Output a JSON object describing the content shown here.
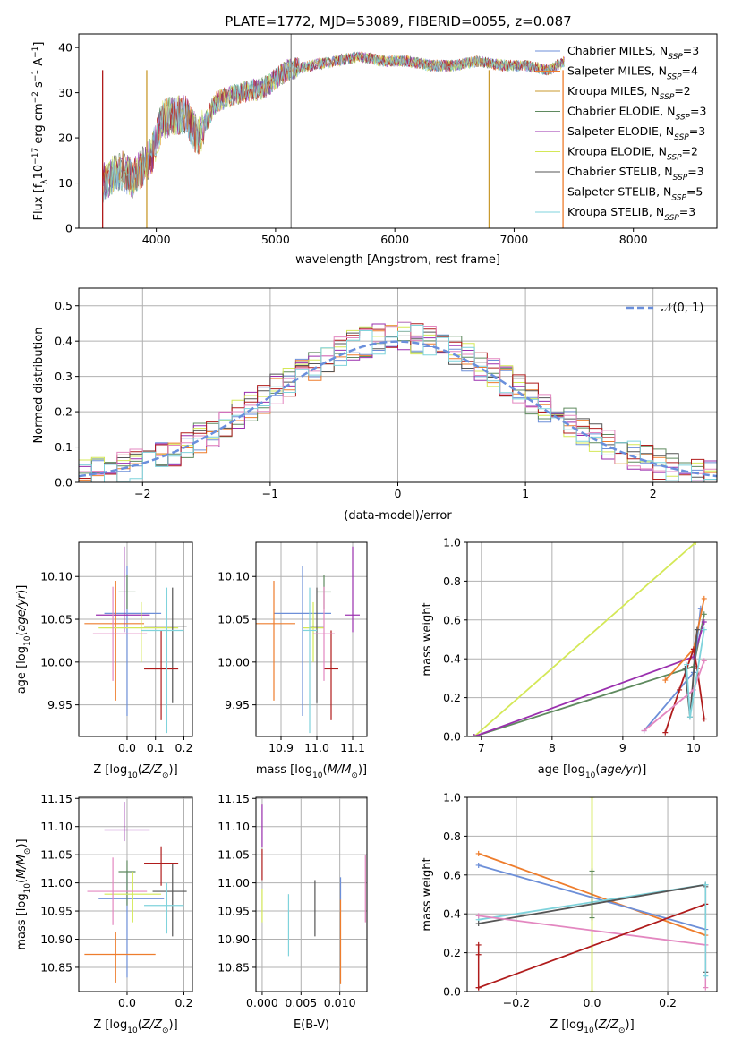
{
  "figure": {
    "title": "PLATE=1772, MJD=53089, FIBERID=0055, z=0.087",
    "legend1": [
      {
        "prefix": "Chabrier MILES, N",
        "sub": "SSP",
        "suffix": "=3",
        "color": "#6d8fd8"
      },
      {
        "prefix": "Salpeter MILES, N",
        "sub": "SSP",
        "suffix": "=4",
        "color": "#ee7d2d"
      },
      {
        "prefix": "Kroupa MILES, N",
        "sub": "SSP",
        "suffix": "=2",
        "color": "#c99a2e"
      },
      {
        "prefix": "Chabrier ELODIE, N",
        "sub": "SSP",
        "suffix": "=3",
        "color": "#5f8a5f"
      },
      {
        "prefix": "Salpeter ELODIE, N",
        "sub": "SSP",
        "suffix": "=3",
        "color": "#9a2fae"
      },
      {
        "prefix": "Kroupa ELODIE, N",
        "sub": "SSP",
        "suffix": "=2",
        "color": "#d4e857"
      },
      {
        "prefix": "Chabrier STELIB, N",
        "sub": "SSP",
        "suffix": "=3",
        "color": "#555555"
      },
      {
        "prefix": "Salpeter STELIB, N",
        "sub": "SSP",
        "suffix": "=5",
        "color": "#b01c1c"
      },
      {
        "prefix": "Kroupa STELIB, N",
        "sub": "SSP",
        "suffix": "=3",
        "color": "#7fd3dc"
      }
    ],
    "legend2": {
      "label": "𝒩(0, 1)",
      "color": "#6a8fdc"
    },
    "colors": {
      "axis": "#000000",
      "grid": "#b0b0b0",
      "gauss": "#6a8fdc"
    }
  },
  "chart_data": [
    {
      "type": "line",
      "title": "PLATE=1772, MJD=53089, FIBERID=0055, z=0.087",
      "xlabel": "wavelength [Angstrom, rest frame]",
      "ylabel": "Flux [f_λ 10^-17 erg cm^-2 s^-1 A^-1]",
      "xlim": [
        3350,
        8700
      ],
      "ylim": [
        0,
        43
      ],
      "xticks": [
        4000,
        5000,
        6000,
        7000,
        8000
      ],
      "yticks": [
        0,
        10,
        20,
        30,
        40
      ],
      "spectrum_anchors": {
        "x": [
          3550,
          3600,
          3700,
          3800,
          3900,
          3960,
          4050,
          4150,
          4250,
          4350,
          4500,
          4700,
          4900,
          5100,
          5300,
          5500,
          5700,
          5900,
          6100,
          6300,
          6500,
          6700,
          6900,
          7100,
          7300,
          7420
        ],
        "y": [
          10,
          11,
          13,
          11,
          14,
          16,
          24,
          25,
          25,
          20,
          28,
          30,
          31,
          35,
          36,
          37,
          38,
          37,
          37,
          36,
          36,
          37,
          36,
          36,
          35,
          37
        ]
      },
      "series": [
        "Chabrier MILES",
        "Salpeter MILES",
        "Kroupa MILES",
        "Chabrier ELODIE",
        "Salpeter ELODIE",
        "Kroupa ELODIE",
        "Chabrier STELIB",
        "Salpeter STELIB",
        "Kroupa STELIB"
      ],
      "grid": false,
      "legend": "upper right"
    },
    {
      "type": "histogram",
      "xlabel": "(data-model)/error",
      "ylabel": "Normed distribution",
      "xlim": [
        -2.5,
        2.5
      ],
      "ylim": [
        0,
        0.55
      ],
      "xticks": [
        -2,
        -1,
        0,
        1,
        2
      ],
      "yticks": [
        0.0,
        0.1,
        0.2,
        0.3,
        0.4,
        0.5
      ],
      "bin_width": 0.1,
      "overlay": {
        "name": "𝒩(0, 1)",
        "mean": 0,
        "sigma": 1
      },
      "grid": true,
      "legend": "upper right"
    },
    {
      "type": "scatter",
      "xlabel": "Z [log10(Z/Z⊙)]",
      "ylabel": "age  [log10(age/yr)]",
      "xlim": [
        -0.17,
        0.23
      ],
      "ylim": [
        9.913,
        10.14
      ],
      "xticks": [
        0.0,
        0.1,
        0.2
      ],
      "yticks": [
        9.95,
        10.0,
        10.05,
        10.1
      ],
      "points": [
        {
          "color": "#6d8fd8",
          "x": 0.0,
          "y": 10.057,
          "xerr": [
            0.08,
            0.12
          ],
          "yerr": [
            0.12,
            0.055
          ]
        },
        {
          "color": "#ee7d2d",
          "x": -0.04,
          "y": 10.045,
          "xerr": [
            0.11,
            0.1
          ],
          "yerr": [
            0.09,
            0.05
          ]
        },
        {
          "color": "#5f8a5f",
          "x": 0.0,
          "y": 10.082,
          "xerr": [
            0.03,
            0.03
          ],
          "yerr": [
            0.02,
            0.02
          ]
        },
        {
          "color": "#9a2fae",
          "x": -0.01,
          "y": 10.055,
          "xerr": [
            0.1,
            0.09
          ],
          "yerr": [
            0.02,
            0.08
          ]
        },
        {
          "color": "#d4e857",
          "x": 0.05,
          "y": 10.04,
          "xerr": [
            0.15,
            0.13
          ],
          "yerr": [
            0.04,
            0.03
          ]
        },
        {
          "color": "#555555",
          "x": 0.16,
          "y": 10.042,
          "xerr": [
            0.1,
            0.05
          ],
          "yerr": [
            0.09,
            0.045
          ]
        },
        {
          "color": "#b01c1c",
          "x": 0.12,
          "y": 9.992,
          "xerr": [
            0.06,
            0.06
          ],
          "yerr": [
            0.06,
            0.045
          ]
        },
        {
          "color": "#e387c0",
          "x": -0.05,
          "y": 10.033,
          "xerr": [
            0.07,
            0.12
          ],
          "yerr": [
            0.055,
            0.055
          ]
        },
        {
          "color": "#7fd3dc",
          "x": 0.14,
          "y": 10.037,
          "xerr": [
            0.09,
            0.06
          ],
          "yerr": [
            0.12,
            0.05
          ]
        }
      ]
    },
    {
      "type": "scatter",
      "xlabel": "mass [log10(M/M⊙)]",
      "xlim": [
        10.83,
        11.14
      ],
      "ylim": [
        9.913,
        10.14
      ],
      "xticks": [
        10.9,
        11.0,
        11.1
      ],
      "yticks": [
        9.95,
        10.0,
        10.05,
        10.1
      ],
      "points": [
        {
          "color": "#6d8fd8",
          "x": 10.96,
          "y": 10.057,
          "xerr": [
            0.08,
            0.08
          ],
          "yerr": [
            0.12,
            0.055
          ]
        },
        {
          "color": "#ee7d2d",
          "x": 10.88,
          "y": 10.045,
          "xerr": [
            0.05,
            0.06
          ],
          "yerr": [
            0.09,
            0.05
          ]
        },
        {
          "color": "#5f8a5f",
          "x": 11.02,
          "y": 10.082,
          "xerr": [
            0.02,
            0.02
          ],
          "yerr": [
            0.02,
            0.02
          ]
        },
        {
          "color": "#9a2fae",
          "x": 11.1,
          "y": 10.055,
          "xerr": [
            0.02,
            0.02
          ],
          "yerr": [
            0.02,
            0.08
          ]
        },
        {
          "color": "#d4e857",
          "x": 10.99,
          "y": 10.04,
          "xerr": [
            0.03,
            0.03
          ],
          "yerr": [
            0.04,
            0.03
          ]
        },
        {
          "color": "#555555",
          "x": 11.0,
          "y": 10.042,
          "xerr": [
            0.02,
            0.02
          ],
          "yerr": [
            0.09,
            0.045
          ]
        },
        {
          "color": "#b01c1c",
          "x": 11.04,
          "y": 9.992,
          "xerr": [
            0.02,
            0.02
          ],
          "yerr": [
            0.06,
            0.045
          ]
        },
        {
          "color": "#e387c0",
          "x": 11.02,
          "y": 10.033,
          "xerr": [
            0.03,
            0.03
          ],
          "yerr": [
            0.055,
            0.055
          ]
        },
        {
          "color": "#7fd3dc",
          "x": 10.98,
          "y": 10.037,
          "xerr": [
            0.02,
            0.02
          ],
          "yerr": [
            0.12,
            0.05
          ]
        }
      ]
    },
    {
      "type": "line",
      "xlabel": "age  [log10(age/yr)]",
      "ylabel": "mass weight",
      "xlim": [
        6.8,
        10.33
      ],
      "ylim": [
        0,
        1
      ],
      "xticks": [
        7,
        8,
        9,
        10
      ],
      "yticks": [
        0.0,
        0.2,
        0.4,
        0.6,
        0.8,
        1.0
      ],
      "series": [
        {
          "color": "#d4e857",
          "x": [
            6.9,
            10.03
          ],
          "y": [
            0.0,
            1.0
          ]
        },
        {
          "color": "#5f8a5f",
          "x": [
            6.9,
            10.0,
            10.15
          ],
          "y": [
            0.0,
            0.36,
            0.63
          ]
        },
        {
          "color": "#9a2fae",
          "x": [
            6.9,
            10.0,
            10.15
          ],
          "y": [
            0.0,
            0.41,
            0.59
          ]
        },
        {
          "color": "#6d8fd8",
          "x": [
            9.3,
            10.0,
            10.1
          ],
          "y": [
            0.03,
            0.33,
            0.66
          ]
        },
        {
          "color": "#ee7d2d",
          "x": [
            9.6,
            10.0,
            10.15
          ],
          "y": [
            0.29,
            0.45,
            0.71
          ]
        },
        {
          "color": "#b01c1c",
          "x": [
            9.6,
            9.8,
            10.0,
            10.05,
            10.15
          ],
          "y": [
            0.02,
            0.24,
            0.45,
            0.35,
            0.09
          ]
        },
        {
          "color": "#555555",
          "x": [
            9.88,
            9.95,
            10.05
          ],
          "y": [
            0.35,
            0.1,
            0.55
          ]
        },
        {
          "color": "#e387c0",
          "x": [
            9.3,
            10.0,
            10.15
          ],
          "y": [
            0.03,
            0.24,
            0.39
          ]
        },
        {
          "color": "#7fd3dc",
          "x": [
            9.9,
            9.95,
            10.15
          ],
          "y": [
            0.37,
            0.1,
            0.55
          ]
        }
      ]
    },
    {
      "type": "scatter",
      "xlabel": "Z [log10(Z/Z⊙)]",
      "ylabel": "mass [log10(M/M⊙)]",
      "xlim": [
        -0.17,
        0.23
      ],
      "ylim": [
        10.807,
        11.152
      ],
      "xticks": [
        0.0,
        0.2
      ],
      "yticks": [
        10.85,
        10.9,
        10.95,
        11.0,
        11.05,
        11.1,
        11.15
      ],
      "points": [
        {
          "color": "#6d8fd8",
          "x": 0.0,
          "y": 10.972,
          "xerr": [
            0.1,
            0.13
          ],
          "yerr": [
            0.14,
            0.05
          ]
        },
        {
          "color": "#ee7d2d",
          "x": -0.04,
          "y": 10.873,
          "xerr": [
            0.11,
            0.14
          ],
          "yerr": [
            0.05,
            0.04
          ]
        },
        {
          "color": "#5f8a5f",
          "x": 0.0,
          "y": 11.02,
          "xerr": [
            0.03,
            0.03
          ],
          "yerr": [
            0.06,
            0.02
          ]
        },
        {
          "color": "#9a2fae",
          "x": -0.01,
          "y": 11.094,
          "xerr": [
            0.07,
            0.09
          ],
          "yerr": [
            0.02,
            0.05
          ]
        },
        {
          "color": "#d4e857",
          "x": 0.02,
          "y": 10.98,
          "xerr": [
            0.1,
            0.1
          ],
          "yerr": [
            0.05,
            0.04
          ]
        },
        {
          "color": "#555555",
          "x": 0.16,
          "y": 10.985,
          "xerr": [
            0.07,
            0.05
          ],
          "yerr": [
            0.08,
            0.05
          ]
        },
        {
          "color": "#b01c1c",
          "x": 0.12,
          "y": 11.035,
          "xerr": [
            0.06,
            0.06
          ],
          "yerr": [
            0.04,
            0.03
          ]
        },
        {
          "color": "#e387c0",
          "x": -0.05,
          "y": 10.985,
          "xerr": [
            0.09,
            0.12
          ],
          "yerr": [
            0.06,
            0.06
          ]
        },
        {
          "color": "#7fd3dc",
          "x": 0.14,
          "y": 10.96,
          "xerr": [
            0.08,
            0.06
          ],
          "yerr": [
            0.05,
            0.04
          ]
        }
      ]
    },
    {
      "type": "scatter",
      "xlabel": "E(B-V)",
      "xlim": [
        -0.0008,
        0.0135
      ],
      "ylim": [
        10.807,
        11.152
      ],
      "xticks": [
        0.0,
        0.005,
        0.01
      ],
      "yticks": [
        10.85,
        10.9,
        10.95,
        11.0,
        11.05,
        11.1,
        11.15
      ],
      "points": [
        {
          "color": "#9a2fae",
          "x": 0.0,
          "y": 11.094,
          "xerr": [
            0,
            0
          ],
          "yerr": [
            0.03,
            0.045
          ]
        },
        {
          "color": "#b01c1c",
          "x": 0.0,
          "y": 11.035,
          "xerr": [
            0,
            0
          ],
          "yerr": [
            0.03,
            0.025
          ]
        },
        {
          "color": "#d4e857",
          "x": 0.0,
          "y": 10.97,
          "xerr": [
            0,
            0
          ],
          "yerr": [
            0.04,
            0.02
          ]
        },
        {
          "color": "#7fd3dc",
          "x": 0.0034,
          "y": 10.93,
          "xerr": [
            0,
            0
          ],
          "yerr": [
            0.06,
            0.05
          ]
        },
        {
          "color": "#555555",
          "x": 0.0068,
          "y": 10.955,
          "xerr": [
            0,
            0
          ],
          "yerr": [
            0.05,
            0.05
          ]
        },
        {
          "color": "#6d8fd8",
          "x": 0.0101,
          "y": 10.99,
          "xerr": [
            0,
            0
          ],
          "yerr": [
            0.02,
            0.02
          ]
        },
        {
          "color": "#ee7d2d",
          "x": 0.0101,
          "y": 10.9,
          "xerr": [
            0,
            0
          ],
          "yerr": [
            0.08,
            0.07
          ]
        },
        {
          "color": "#e387c0",
          "x": 0.0133,
          "y": 10.99,
          "xerr": [
            0,
            0
          ],
          "yerr": [
            0.06,
            0.06
          ]
        }
      ]
    },
    {
      "type": "line",
      "xlabel": "Z [log10(Z/Z⊙)]",
      "ylabel": "mass weight",
      "xlim": [
        -0.33,
        0.33
      ],
      "ylim": [
        0,
        1
      ],
      "xticks": [
        -0.2,
        0.0,
        0.2
      ],
      "yticks": [
        0.0,
        0.2,
        0.4,
        0.6,
        0.8,
        1.0
      ],
      "series": [
        {
          "color": "#d4e857",
          "x": [
            0.0,
            0.0
          ],
          "y": [
            0.0,
            1.0
          ]
        },
        {
          "color": "#ee7d2d",
          "x": [
            -0.3,
            0.3
          ],
          "y": [
            0.71,
            0.29
          ]
        },
        {
          "color": "#6d8fd8",
          "x": [
            -0.3,
            0.3
          ],
          "y": [
            0.65,
            0.32
          ]
        },
        {
          "color": "#7fd3dc",
          "x": [
            -0.3,
            0.3
          ],
          "y": [
            0.37,
            0.55
          ]
        },
        {
          "color": "#555555",
          "x": [
            -0.3,
            0.3
          ],
          "y": [
            0.35,
            0.55
          ]
        },
        {
          "color": "#e387c0",
          "x": [
            -0.3,
            0.3
          ],
          "y": [
            0.39,
            0.24
          ]
        },
        {
          "color": "#b01c1c",
          "x": [
            -0.3,
            0.3
          ],
          "y": [
            0.02,
            0.45
          ]
        }
      ],
      "markers": [
        {
          "color": "#b01c1c",
          "x": -0.3,
          "y": [
            0.02,
            0.19,
            0.24
          ]
        },
        {
          "color": "#5f8a5f",
          "x": 0.0,
          "y": [
            0.38,
            0.62
          ]
        },
        {
          "color": "#555555",
          "x": 0.3,
          "y": [
            0.1,
            0.54
          ]
        },
        {
          "color": "#e387c0",
          "x": 0.3,
          "y": [
            0.02,
            0.24
          ]
        },
        {
          "color": "#7fd3dc",
          "x": 0.3,
          "y": [
            0.08,
            0.55
          ]
        }
      ]
    }
  ]
}
